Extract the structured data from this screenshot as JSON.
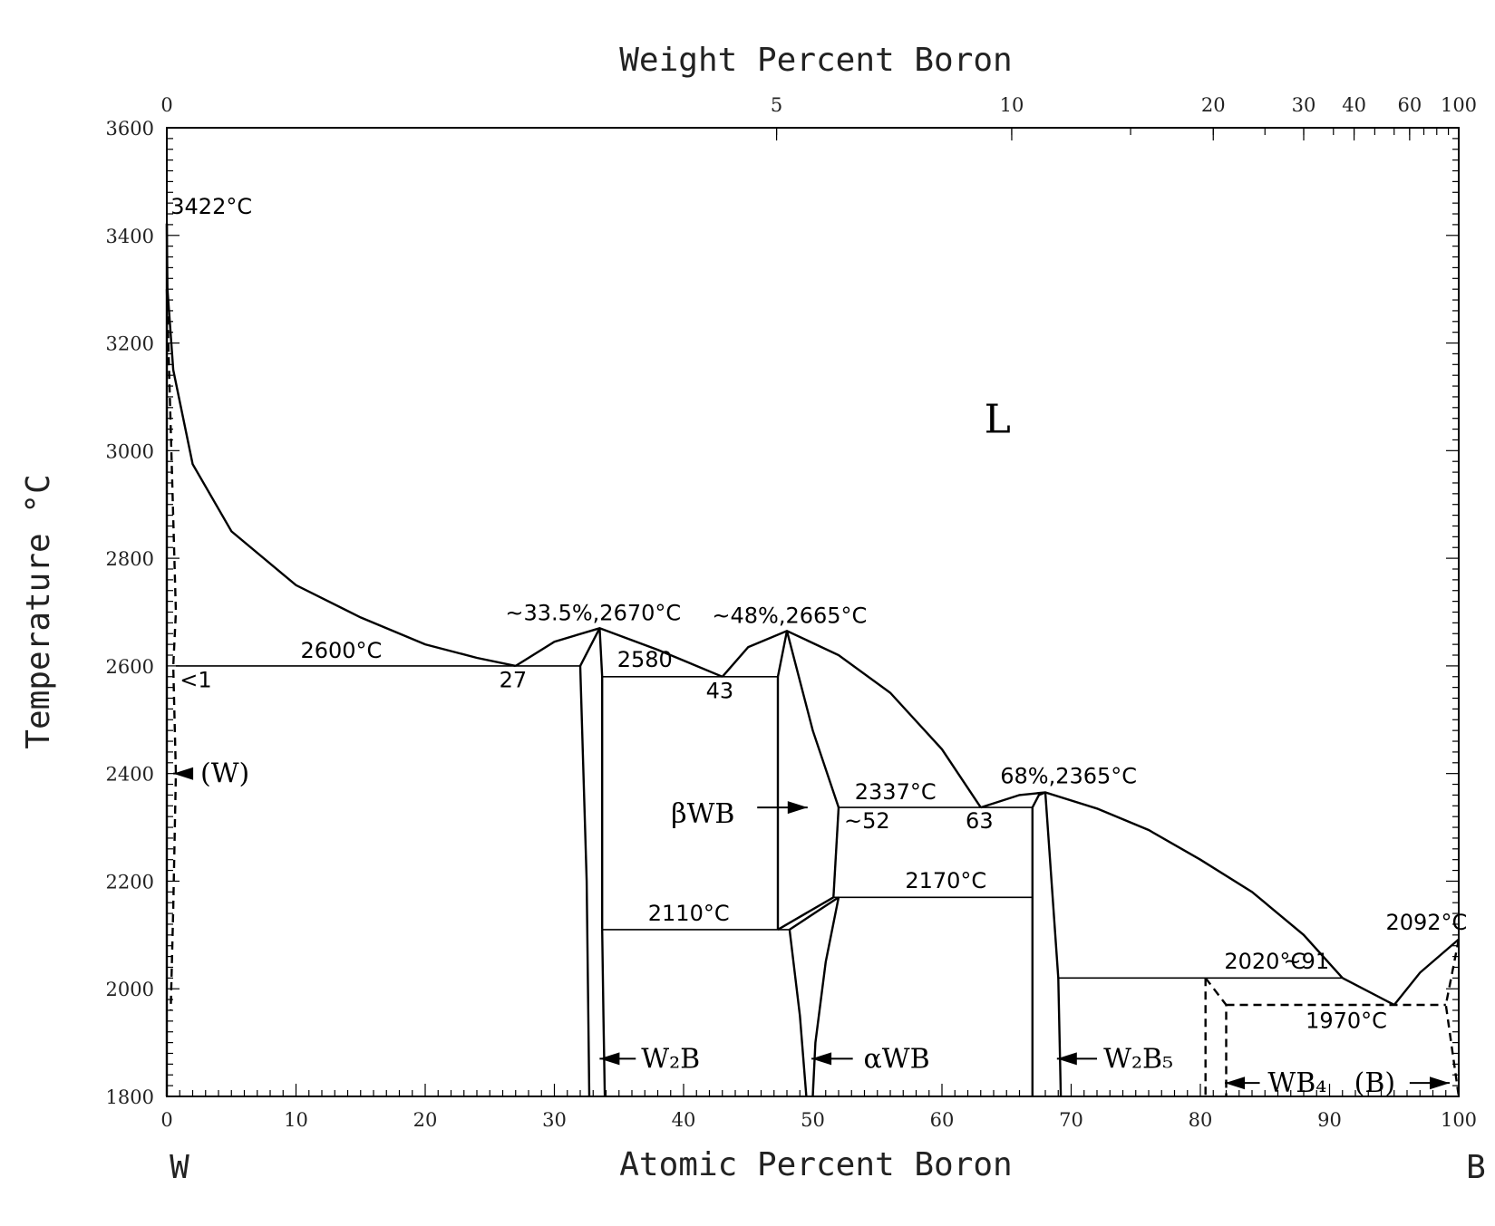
{
  "chart_data": {
    "type": "line",
    "title": "",
    "xlabel": "Atomic Percent Boron",
    "x2label": "Weight Percent Boron",
    "ylabel": "Temperature °C",
    "xlim": [
      0,
      100
    ],
    "ylim": [
      1800,
      3600
    ],
    "x_ticks": [
      "0",
      "10",
      "20",
      "30",
      "40",
      "50",
      "60",
      "70",
      "80",
      "90",
      "100"
    ],
    "y_ticks": [
      "1800",
      "2000",
      "2200",
      "2400",
      "2600",
      "2800",
      "3000",
      "3200",
      "3400",
      "3600"
    ],
    "x2_ticks": [
      {
        "label": "0",
        "at_pct": 0
      },
      {
        "label": "5",
        "at_pct": 47.2
      },
      {
        "label": "10",
        "at_pct": 65.4
      },
      {
        "label": "20",
        "at_pct": 81.0
      },
      {
        "label": "30",
        "at_pct": 88.0
      },
      {
        "label": "40",
        "at_pct": 91.9
      },
      {
        "label": "60",
        "at_pct": 96.2
      },
      {
        "label": "100",
        "at_pct": 100
      }
    ],
    "x2_minor_at_pct": [
      47.2,
      65.4,
      74.6,
      81.0,
      85.0,
      88.0,
      90.3,
      91.9,
      93.5,
      95.0,
      96.2,
      97.3,
      98.3,
      99.2,
      100
    ],
    "end_labels": {
      "left": "W",
      "right": "B"
    },
    "series": [
      {
        "style": "solid",
        "points": [
          [
            0,
            3422
          ],
          [
            0.05,
            3300
          ],
          [
            0.5,
            3150
          ],
          [
            2,
            2975
          ],
          [
            5,
            2850
          ],
          [
            10,
            2750
          ],
          [
            15,
            2690
          ],
          [
            20,
            2640
          ],
          [
            24,
            2615
          ],
          [
            27,
            2600
          ]
        ]
      },
      {
        "style": "solid",
        "points": [
          [
            27,
            2600
          ],
          [
            30,
            2645
          ],
          [
            33.5,
            2670
          ],
          [
            38,
            2630
          ],
          [
            43,
            2580
          ]
        ]
      },
      {
        "style": "solid",
        "points": [
          [
            43,
            2580
          ],
          [
            45,
            2635
          ],
          [
            48,
            2665
          ],
          [
            52,
            2620
          ],
          [
            56,
            2550
          ],
          [
            60,
            2445
          ],
          [
            63,
            2337
          ]
        ]
      },
      {
        "style": "solid",
        "points": [
          [
            63,
            2337
          ],
          [
            66,
            2360
          ],
          [
            68,
            2365
          ],
          [
            72,
            2335
          ],
          [
            76,
            2295
          ],
          [
            80,
            2240
          ],
          [
            84,
            2180
          ],
          [
            88,
            2100
          ],
          [
            91,
            2020
          ]
        ]
      },
      {
        "style": "solid",
        "points": [
          [
            91,
            2020
          ],
          [
            95,
            1970
          ]
        ]
      },
      {
        "style": "solid",
        "points": [
          [
            95,
            1970
          ],
          [
            97,
            2030
          ],
          [
            100,
            2092
          ]
        ]
      },
      {
        "style": "solid",
        "points": [
          [
            0,
            3422
          ],
          [
            0,
            1800
          ]
        ]
      },
      {
        "style": "dashed",
        "points": [
          [
            0,
            3300
          ],
          [
            0.7,
            2700
          ],
          [
            0.5,
            2600
          ],
          [
            0.7,
            2400
          ],
          [
            0.5,
            2150
          ],
          [
            0.3,
            1960
          ]
        ]
      },
      {
        "style": "solid",
        "points": [
          [
            0.7,
            2600
          ],
          [
            32,
            2600
          ]
        ]
      },
      {
        "style": "solid",
        "points": [
          [
            32,
            2600
          ],
          [
            32.5,
            2200
          ],
          [
            32.7,
            1800
          ]
        ]
      },
      {
        "style": "solid",
        "points": [
          [
            32,
            2600
          ],
          [
            33.5,
            2670
          ]
        ]
      },
      {
        "style": "solid",
        "points": [
          [
            33.5,
            2670
          ],
          [
            33.7,
            2580
          ],
          [
            33.7,
            2110
          ]
        ]
      },
      {
        "style": "solid",
        "points": [
          [
            33.7,
            2110
          ],
          [
            33.8,
            1950
          ],
          [
            33.9,
            1800
          ]
        ]
      },
      {
        "style": "solid",
        "points": [
          [
            33.7,
            2580
          ],
          [
            47.3,
            2580
          ]
        ]
      },
      {
        "style": "solid",
        "points": [
          [
            47.3,
            2580
          ],
          [
            48,
            2665
          ]
        ]
      },
      {
        "style": "solid",
        "points": [
          [
            47.3,
            2580
          ],
          [
            47.3,
            2110
          ]
        ]
      },
      {
        "style": "solid",
        "points": [
          [
            33.7,
            2110
          ],
          [
            48.2,
            2110
          ]
        ]
      },
      {
        "style": "solid",
        "points": [
          [
            47.3,
            2110
          ],
          [
            51.6,
            2170
          ]
        ]
      },
      {
        "style": "solid",
        "points": [
          [
            48.2,
            2110
          ],
          [
            52,
            2170
          ]
        ]
      },
      {
        "style": "solid",
        "points": [
          [
            48,
            2665
          ],
          [
            50,
            2480
          ],
          [
            52,
            2337
          ]
        ]
      },
      {
        "style": "solid",
        "points": [
          [
            52,
            2337
          ],
          [
            51.6,
            2170
          ]
        ]
      },
      {
        "style": "solid",
        "points": [
          [
            52,
            2337
          ],
          [
            67,
            2337
          ]
        ]
      },
      {
        "style": "solid",
        "points": [
          [
            51.6,
            2170
          ],
          [
            67,
            2170
          ]
        ]
      },
      {
        "style": "solid",
        "points": [
          [
            48.2,
            2110
          ],
          [
            49,
            1950
          ],
          [
            49.5,
            1800
          ]
        ]
      },
      {
        "style": "solid",
        "points": [
          [
            52,
            2170
          ],
          [
            51,
            2050
          ],
          [
            50.2,
            1900
          ],
          [
            50,
            1800
          ]
        ]
      },
      {
        "style": "solid",
        "points": [
          [
            67,
            2337
          ],
          [
            67.5,
            2360
          ],
          [
            68,
            2365
          ]
        ]
      },
      {
        "style": "solid",
        "points": [
          [
            67,
            2337
          ],
          [
            67,
            1800
          ]
        ]
      },
      {
        "style": "solid",
        "points": [
          [
            68,
            2365
          ],
          [
            69,
            2020
          ],
          [
            69.2,
            1800
          ]
        ]
      },
      {
        "style": "solid",
        "points": [
          [
            69,
            2020
          ],
          [
            91,
            2020
          ]
        ]
      },
      {
        "style": "dashed",
        "points": [
          [
            80.4,
            2020
          ],
          [
            80.4,
            1800
          ]
        ]
      },
      {
        "style": "dashed",
        "points": [
          [
            80.4,
            2020
          ],
          [
            82,
            1970
          ],
          [
            82,
            1800
          ]
        ]
      },
      {
        "style": "dashed",
        "points": [
          [
            82,
            1970
          ],
          [
            99,
            1970
          ]
        ]
      },
      {
        "style": "dashed",
        "points": [
          [
            100,
            2092
          ],
          [
            99,
            1970
          ],
          [
            100,
            1800
          ]
        ]
      }
    ],
    "annotations": [
      {
        "text": "3422°C",
        "x": 0.3,
        "y": 3440,
        "anchor": "start"
      },
      {
        "text": "2600°C",
        "x": 13.5,
        "y": 2615,
        "anchor": "middle"
      },
      {
        "text": "<1",
        "x": 1.0,
        "y": 2560,
        "anchor": "start"
      },
      {
        "text": "27",
        "x": 26.8,
        "y": 2560,
        "anchor": "middle"
      },
      {
        "text": "~33.5%,2670°C",
        "x": 33.0,
        "y": 2685,
        "anchor": "middle"
      },
      {
        "text": "2580",
        "x": 37,
        "y": 2598,
        "anchor": "middle"
      },
      {
        "text": "43",
        "x": 42.8,
        "y": 2540,
        "anchor": "middle"
      },
      {
        "text": "~48%,2665°C",
        "x": 48.2,
        "y": 2680,
        "anchor": "middle"
      },
      {
        "text": "2337°C",
        "x": 56.4,
        "y": 2352,
        "anchor": "middle"
      },
      {
        "text": "~52",
        "x": 54.2,
        "y": 2298,
        "anchor": "middle"
      },
      {
        "text": "63",
        "x": 62.9,
        "y": 2298,
        "anchor": "middle"
      },
      {
        "text": "68%,2365°C",
        "x": 69.8,
        "y": 2382,
        "anchor": "middle"
      },
      {
        "text": "2170°C",
        "x": 60.3,
        "y": 2187,
        "anchor": "middle"
      },
      {
        "text": "2110°C",
        "x": 40.4,
        "y": 2127,
        "anchor": "middle"
      },
      {
        "text": "2020°C",
        "x": 85,
        "y": 2037,
        "anchor": "middle"
      },
      {
        "text": "~91",
        "x": 88.2,
        "y": 2037,
        "anchor": "middle"
      },
      {
        "text": "2092°C",
        "x": 97.5,
        "y": 2110,
        "anchor": "middle"
      },
      {
        "text": "1970°C",
        "x": 91.3,
        "y": 1927,
        "anchor": "middle"
      }
    ],
    "phase_labels": [
      {
        "text": "L",
        "x": 64.3,
        "y": 3050
      },
      {
        "text": "(W)",
        "x": 4.5,
        "y": 2400
      },
      {
        "text": "βWB",
        "x": 41.5,
        "y": 2325
      },
      {
        "text": "W₂B",
        "x": 39.0,
        "y": 1870
      },
      {
        "text": "αWB",
        "x": 56.5,
        "y": 1870
      },
      {
        "text": "W₂B₅",
        "x": 75.2,
        "y": 1870
      },
      {
        "text": "WB₄",
        "x": 87.5,
        "y": 1825
      },
      {
        "text": "(B)",
        "x": 93.5,
        "y": 1825
      }
    ],
    "arrows": [
      {
        "from": [
          2,
          2400
        ],
        "to": [
          0.5,
          2400
        ]
      },
      {
        "from": [
          45.7,
          2337
        ],
        "to": [
          49.6,
          2337
        ]
      },
      {
        "from": [
          36.3,
          1870
        ],
        "to": [
          33.5,
          1870
        ]
      },
      {
        "from": [
          53.1,
          1870
        ],
        "to": [
          49.9,
          1870
        ]
      },
      {
        "from": [
          72.0,
          1870
        ],
        "to": [
          68.9,
          1870
        ]
      },
      {
        "from": [
          84.6,
          1825
        ],
        "to": [
          81.9,
          1825
        ]
      },
      {
        "from": [
          96.2,
          1825
        ],
        "to": [
          99.3,
          1825
        ]
      }
    ]
  }
}
